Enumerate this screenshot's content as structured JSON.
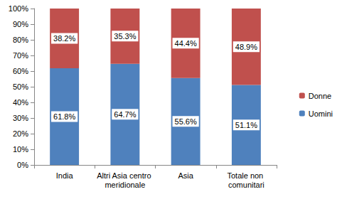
{
  "chart_data": {
    "type": "bar",
    "stacked": true,
    "data_labels": true,
    "legend": "right",
    "grid": false,
    "categories": [
      "India",
      "Altri Asia centro meridionale",
      "Asia",
      "Totale non comunitari"
    ],
    "series": [
      {
        "name": "Uomini",
        "color": "#4f81bd",
        "values": [
          61.8,
          64.7,
          55.6,
          51.1
        ],
        "value_labels": [
          "61.8%",
          "64.7%",
          "55.6%",
          "51.1%"
        ]
      },
      {
        "name": "Donne",
        "color": "#c0504d",
        "values": [
          38.2,
          35.3,
          44.4,
          48.9
        ],
        "value_labels": [
          "38.2%",
          "35.3%",
          "44.4%",
          "48.9%"
        ]
      }
    ],
    "ylim": [
      0,
      100
    ],
    "yticks": [
      {
        "value": 0,
        "label": "0%"
      },
      {
        "value": 10,
        "label": "10%"
      },
      {
        "value": 20,
        "label": "20%"
      },
      {
        "value": 30,
        "label": "30%"
      },
      {
        "value": 40,
        "label": "40%"
      },
      {
        "value": 50,
        "label": "50%"
      },
      {
        "value": 60,
        "label": "60%"
      },
      {
        "value": 70,
        "label": "70%"
      },
      {
        "value": 80,
        "label": "80%"
      },
      {
        "value": 90,
        "label": "90%"
      },
      {
        "value": 100,
        "label": "100%"
      }
    ]
  }
}
